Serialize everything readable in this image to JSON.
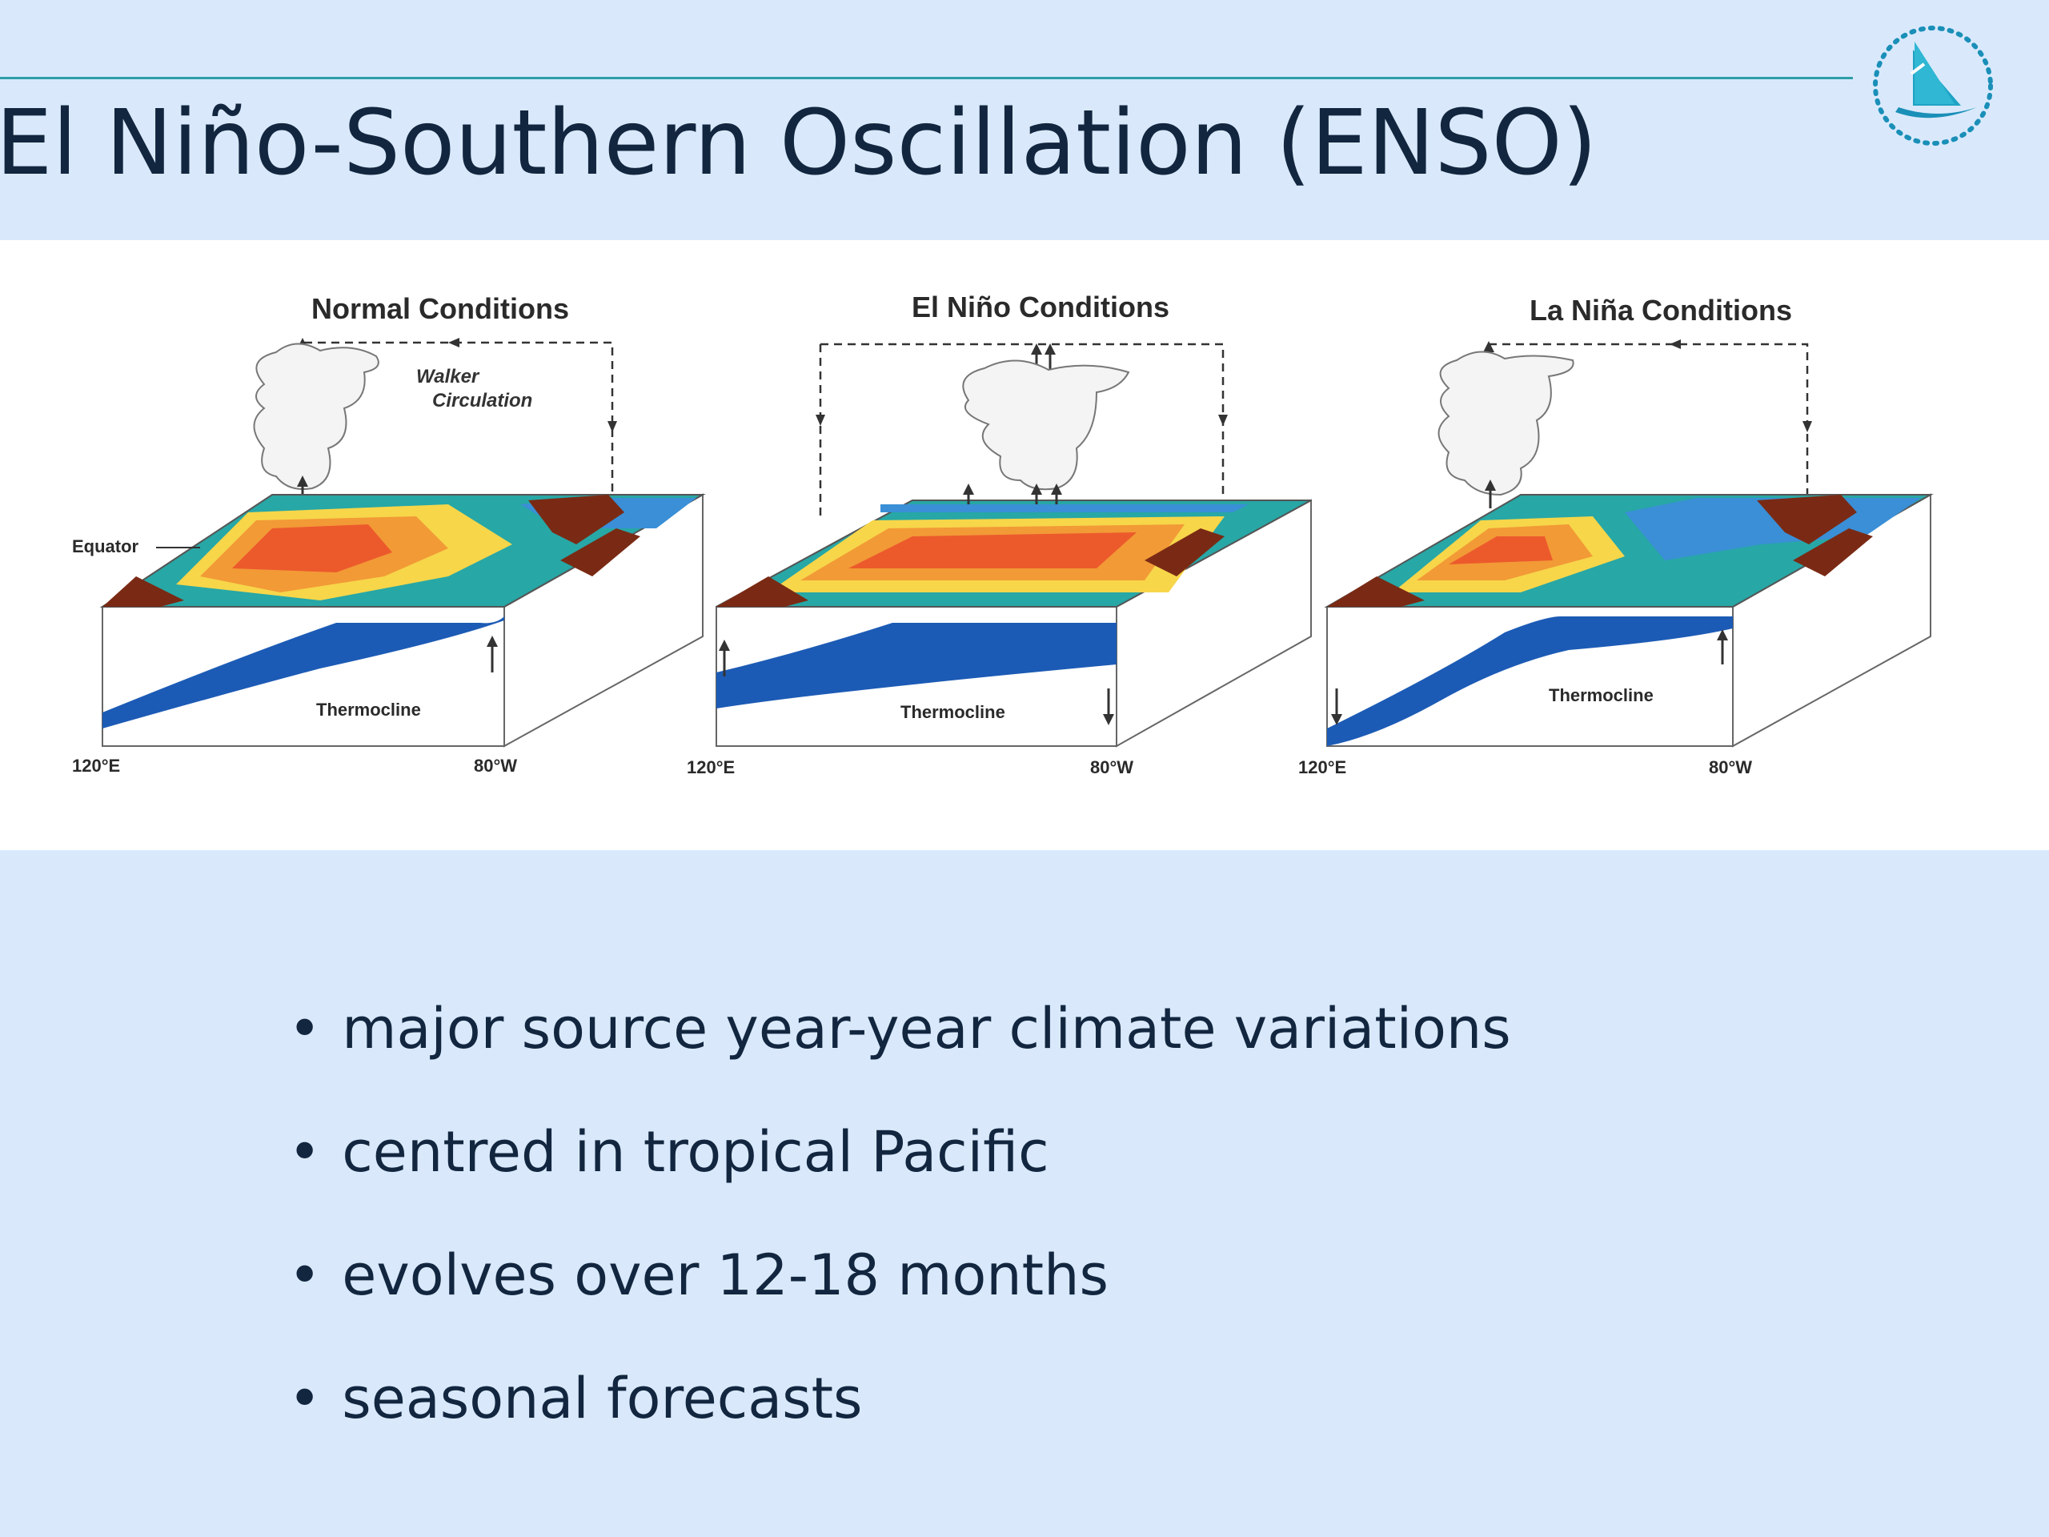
{
  "slide": {
    "title": "El Niño-Southern Oscillation (ENSO)",
    "bullets": [
      "major source year-year climate variations",
      "centred in tropical Pacific",
      "evolves over 12-18 months",
      "seasonal forecasts"
    ]
  },
  "figure": {
    "panels": [
      {
        "title": "Normal Conditions",
        "walker_label": [
          "Walker",
          "Circulation"
        ],
        "equator_label": "Equator",
        "thermocline_label": "Thermocline",
        "west_label": "120°E",
        "east_label": "80°W"
      },
      {
        "title": "El Niño Conditions",
        "thermocline_label": "Thermocline",
        "west_label": "120°E",
        "east_label": "80°W"
      },
      {
        "title": "La Niña Conditions",
        "thermocline_label": "Thermocline",
        "west_label": "120°E",
        "east_label": "80°W"
      }
    ]
  },
  "colors": {
    "background": "#d9e9fb",
    "title": "#12263f",
    "rule": "#2f9ea8",
    "thermocline": "#1c5bb5",
    "land": "#7a2a14"
  }
}
